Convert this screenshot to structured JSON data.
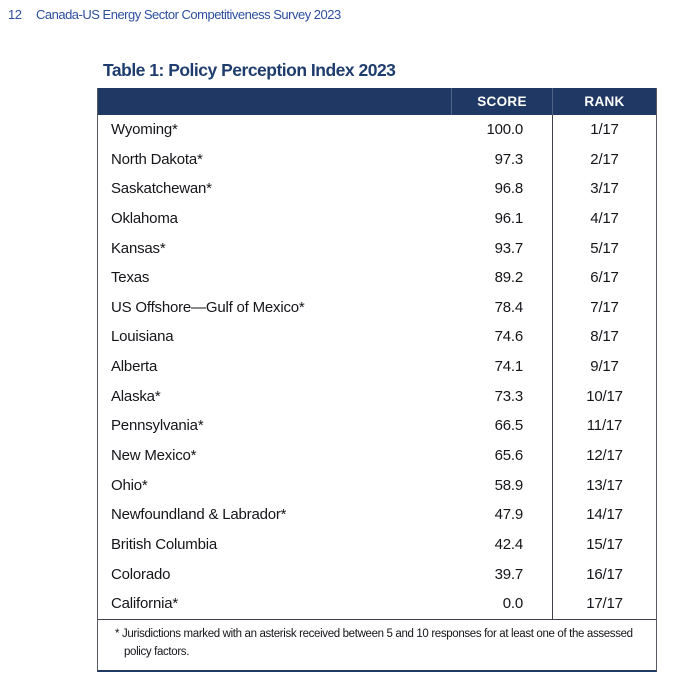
{
  "page": {
    "number": "12",
    "header_title": "Canada-US Energy Sector Competitiveness Survey 2023"
  },
  "table": {
    "title": "Table 1: Policy Perception Index 2023",
    "columns": {
      "jurisdiction": "",
      "score": "SCORE",
      "rank": "RANK"
    },
    "rows": [
      {
        "jurisdiction": "Wyoming*",
        "score": "100.0",
        "rank": "1/17"
      },
      {
        "jurisdiction": "North Dakota*",
        "score": "97.3",
        "rank": "2/17"
      },
      {
        "jurisdiction": "Saskatchewan*",
        "score": "96.8",
        "rank": "3/17"
      },
      {
        "jurisdiction": "Oklahoma",
        "score": "96.1",
        "rank": "4/17"
      },
      {
        "jurisdiction": "Kansas*",
        "score": "93.7",
        "rank": "5/17"
      },
      {
        "jurisdiction": "Texas",
        "score": "89.2",
        "rank": "6/17"
      },
      {
        "jurisdiction": "US Offshore—Gulf of Mexico*",
        "score": "78.4",
        "rank": "7/17"
      },
      {
        "jurisdiction": "Louisiana",
        "score": "74.6",
        "rank": "8/17"
      },
      {
        "jurisdiction": "Alberta",
        "score": "74.1",
        "rank": "9/17"
      },
      {
        "jurisdiction": "Alaska*",
        "score": "73.3",
        "rank": "10/17"
      },
      {
        "jurisdiction": "Pennsylvania*",
        "score": "66.5",
        "rank": "11/17"
      },
      {
        "jurisdiction": "New Mexico*",
        "score": "65.6",
        "rank": "12/17"
      },
      {
        "jurisdiction": "Ohio*",
        "score": "58.9",
        "rank": "13/17"
      },
      {
        "jurisdiction": "Newfoundland & Labrador*",
        "score": "47.9",
        "rank": "14/17"
      },
      {
        "jurisdiction": "British Columbia",
        "score": "42.4",
        "rank": "15/17"
      },
      {
        "jurisdiction": "Colorado",
        "score": "39.7",
        "rank": "16/17"
      },
      {
        "jurisdiction": "California*",
        "score": "0.0",
        "rank": "17/17"
      }
    ],
    "footnote": "* Jurisdictions marked with an asterisk received between 5 and 10 responses for at least one of the assessed policy factors."
  },
  "colors": {
    "header_bar": "#1f3864",
    "title_text": "#1e3d6e",
    "running_header_text": "#2d4f9e",
    "body_text": "#15151a"
  }
}
